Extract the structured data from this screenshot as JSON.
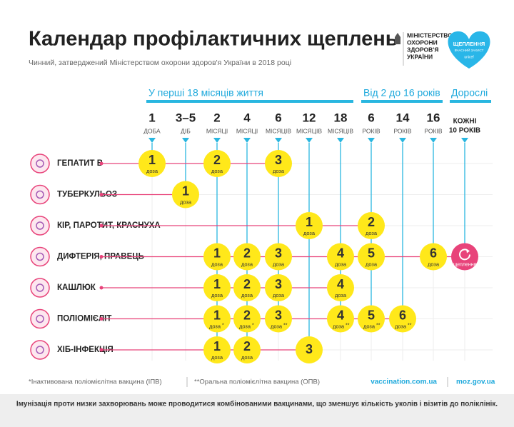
{
  "header": {
    "title": "Календар профілактичних щеплень",
    "subtitle": "Чинний, затверджений Міністерством охорони здоров'я України в 2018 році",
    "ministry": [
      "МІНІСТЕРСТВО",
      "ОХОРОНИ",
      "ЗДОРОВ'Я",
      "УКРАЇНИ"
    ],
    "badge": [
      "ЩЕПЛЕННЯ",
      "ВЧАСНИЙ ЗАХИСТ",
      "unicef"
    ]
  },
  "groups": [
    "У перші 18 місяців життя",
    "Від 2 до 16 років",
    "Дорослі"
  ],
  "columns": [
    {
      "number": "1",
      "unit": "ДОБА"
    },
    {
      "number": "3–5",
      "unit": "ДІБ"
    },
    {
      "number": "2",
      "unit": "МІСЯЦІ"
    },
    {
      "number": "4",
      "unit": "МІСЯЦІ"
    },
    {
      "number": "6",
      "unit": "МІСЯЦІВ"
    },
    {
      "number": "12",
      "unit": "МІСЯЦІВ"
    },
    {
      "number": "18",
      "unit": "МІСЯЦІВ"
    },
    {
      "number": "6",
      "unit": "РОКІВ"
    },
    {
      "number": "14",
      "unit": "РОКІВ"
    },
    {
      "number": "16",
      "unit": "РОКІВ"
    },
    {
      "number": "КОЖНІ",
      "unit": "10 РОКІВ"
    }
  ],
  "rows": [
    {
      "name": "ГЕПАТИТ В",
      "doses": [
        {
          "number": "1",
          "label": "доза"
        },
        null,
        {
          "number": "2",
          "label": "доза"
        },
        null,
        {
          "number": "3",
          "label": "доза"
        },
        null,
        null,
        null,
        null,
        null,
        null
      ]
    },
    {
      "name": "ТУБЕРКУЛЬОЗ",
      "doses": [
        null,
        {
          "number": "1",
          "label": "доза"
        },
        null,
        null,
        null,
        null,
        null,
        null,
        null,
        null,
        null
      ]
    },
    {
      "name": "КІР, ПАРОТИТ, КРАСНУХА",
      "doses": [
        null,
        null,
        null,
        null,
        null,
        {
          "number": "1",
          "label": "доза"
        },
        null,
        {
          "number": "2",
          "label": "доза"
        },
        null,
        null,
        null
      ]
    },
    {
      "name": "ДИФТЕРІЯ, ПРАВЕЦЬ",
      "doses": [
        null,
        null,
        {
          "number": "1",
          "label": "доза"
        },
        {
          "number": "2",
          "label": "доза"
        },
        {
          "number": "3",
          "label": "доза"
        },
        null,
        {
          "number": "4",
          "label": "доза"
        },
        {
          "number": "5",
          "label": "доза"
        },
        null,
        {
          "number": "6",
          "label": "доза"
        },
        {
          "label": "щеплення"
        }
      ]
    },
    {
      "name": "КАШЛЮК",
      "doses": [
        null,
        null,
        {
          "number": "1",
          "label": "доза"
        },
        {
          "number": "2",
          "label": "доза"
        },
        {
          "number": "3",
          "label": "доза"
        },
        null,
        {
          "number": "4",
          "label": "доза"
        },
        null,
        null,
        null,
        null
      ]
    },
    {
      "name": "ПОЛІОМІЄЛІТ",
      "doses": [
        null,
        null,
        {
          "number": "1",
          "label": "доза",
          "mark": "*"
        },
        {
          "number": "2",
          "label": "доза",
          "mark": "*"
        },
        {
          "number": "3",
          "label": "доза",
          "mark": "**"
        },
        null,
        {
          "number": "4",
          "label": "доза",
          "mark": "**"
        },
        {
          "number": "5",
          "label": "доза",
          "mark": "**"
        },
        {
          "number": "6",
          "label": "доза",
          "mark": "**"
        },
        null,
        null
      ]
    },
    {
      "name": "ХІБ-ІНФЕКЦІЯ",
      "doses": [
        null,
        null,
        {
          "number": "1",
          "label": "доза"
        },
        {
          "number": "2",
          "label": "доза"
        },
        null,
        {
          "number": "3"
        },
        null,
        null,
        null,
        null,
        null
      ]
    }
  ],
  "footer": {
    "notes": [
      "*Інактивована поліомієлітна вакцина (ІПВ)",
      "**Оральна поліомієлітна вакцина (ОПВ)"
    ],
    "links": [
      "vaccination.com.ua",
      "moz.gov.ua"
    ],
    "bottom": "Імунізація проти низки захворювань може проводитися комбінованими вакцинами, що зменшує кількість уколів і візитів до поліклінік."
  }
}
